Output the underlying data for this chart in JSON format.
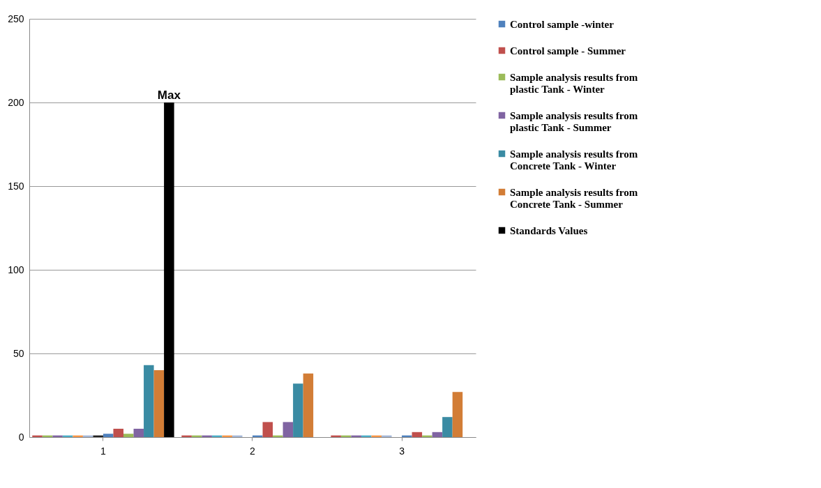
{
  "chart_data": {
    "type": "bar",
    "categories": [
      "1",
      "2",
      "3"
    ],
    "series": [
      {
        "color": "#c0504d",
        "values": [
          1,
          1,
          1
        ]
      },
      {
        "color": "#9bbb59",
        "values": [
          1,
          1,
          1
        ]
      },
      {
        "color": "#8064a2",
        "values": [
          1,
          1,
          1
        ]
      },
      {
        "color": "#4bacc6",
        "values": [
          1,
          1,
          1
        ]
      },
      {
        "color": "#f79646",
        "values": [
          1,
          1,
          1
        ]
      },
      {
        "color": "#a5b8d8",
        "values": [
          1,
          1,
          1
        ]
      },
      {
        "color": "#222222",
        "values": [
          1,
          null,
          null
        ]
      },
      {
        "name": "Control   sample -winter",
        "color": "#4f81bd",
        "values": [
          2,
          1,
          1
        ]
      },
      {
        "name": "Control   sample - Summer",
        "color": "#c0504d",
        "values": [
          5,
          9,
          3
        ]
      },
      {
        "name": "Sample analysis results  from plastic Tank - Winter",
        "color": "#9bbb59",
        "values": [
          2,
          1,
          1
        ]
      },
      {
        "name": "Sample analysis results  from plastic Tank -  Summer",
        "color": "#8064a2",
        "values": [
          5,
          9,
          3
        ]
      },
      {
        "name": "Sample analysis results  from Concrete  Tank - Winter",
        "color": "#3a8ba3",
        "values": [
          43,
          32,
          12
        ]
      },
      {
        "name": "Sample analysis results  from Concrete  Tank - Summer",
        "color": "#d27d36",
        "values": [
          40,
          38,
          27
        ]
      },
      {
        "name": "Standards Values",
        "color": "#000000",
        "values": [
          200,
          null,
          null
        ]
      }
    ],
    "ylim": [
      0,
      250
    ],
    "yticks": [
      0,
      50,
      100,
      150,
      200,
      250
    ],
    "grid": "y",
    "legend": "right",
    "annotations": [
      "Max"
    ]
  }
}
